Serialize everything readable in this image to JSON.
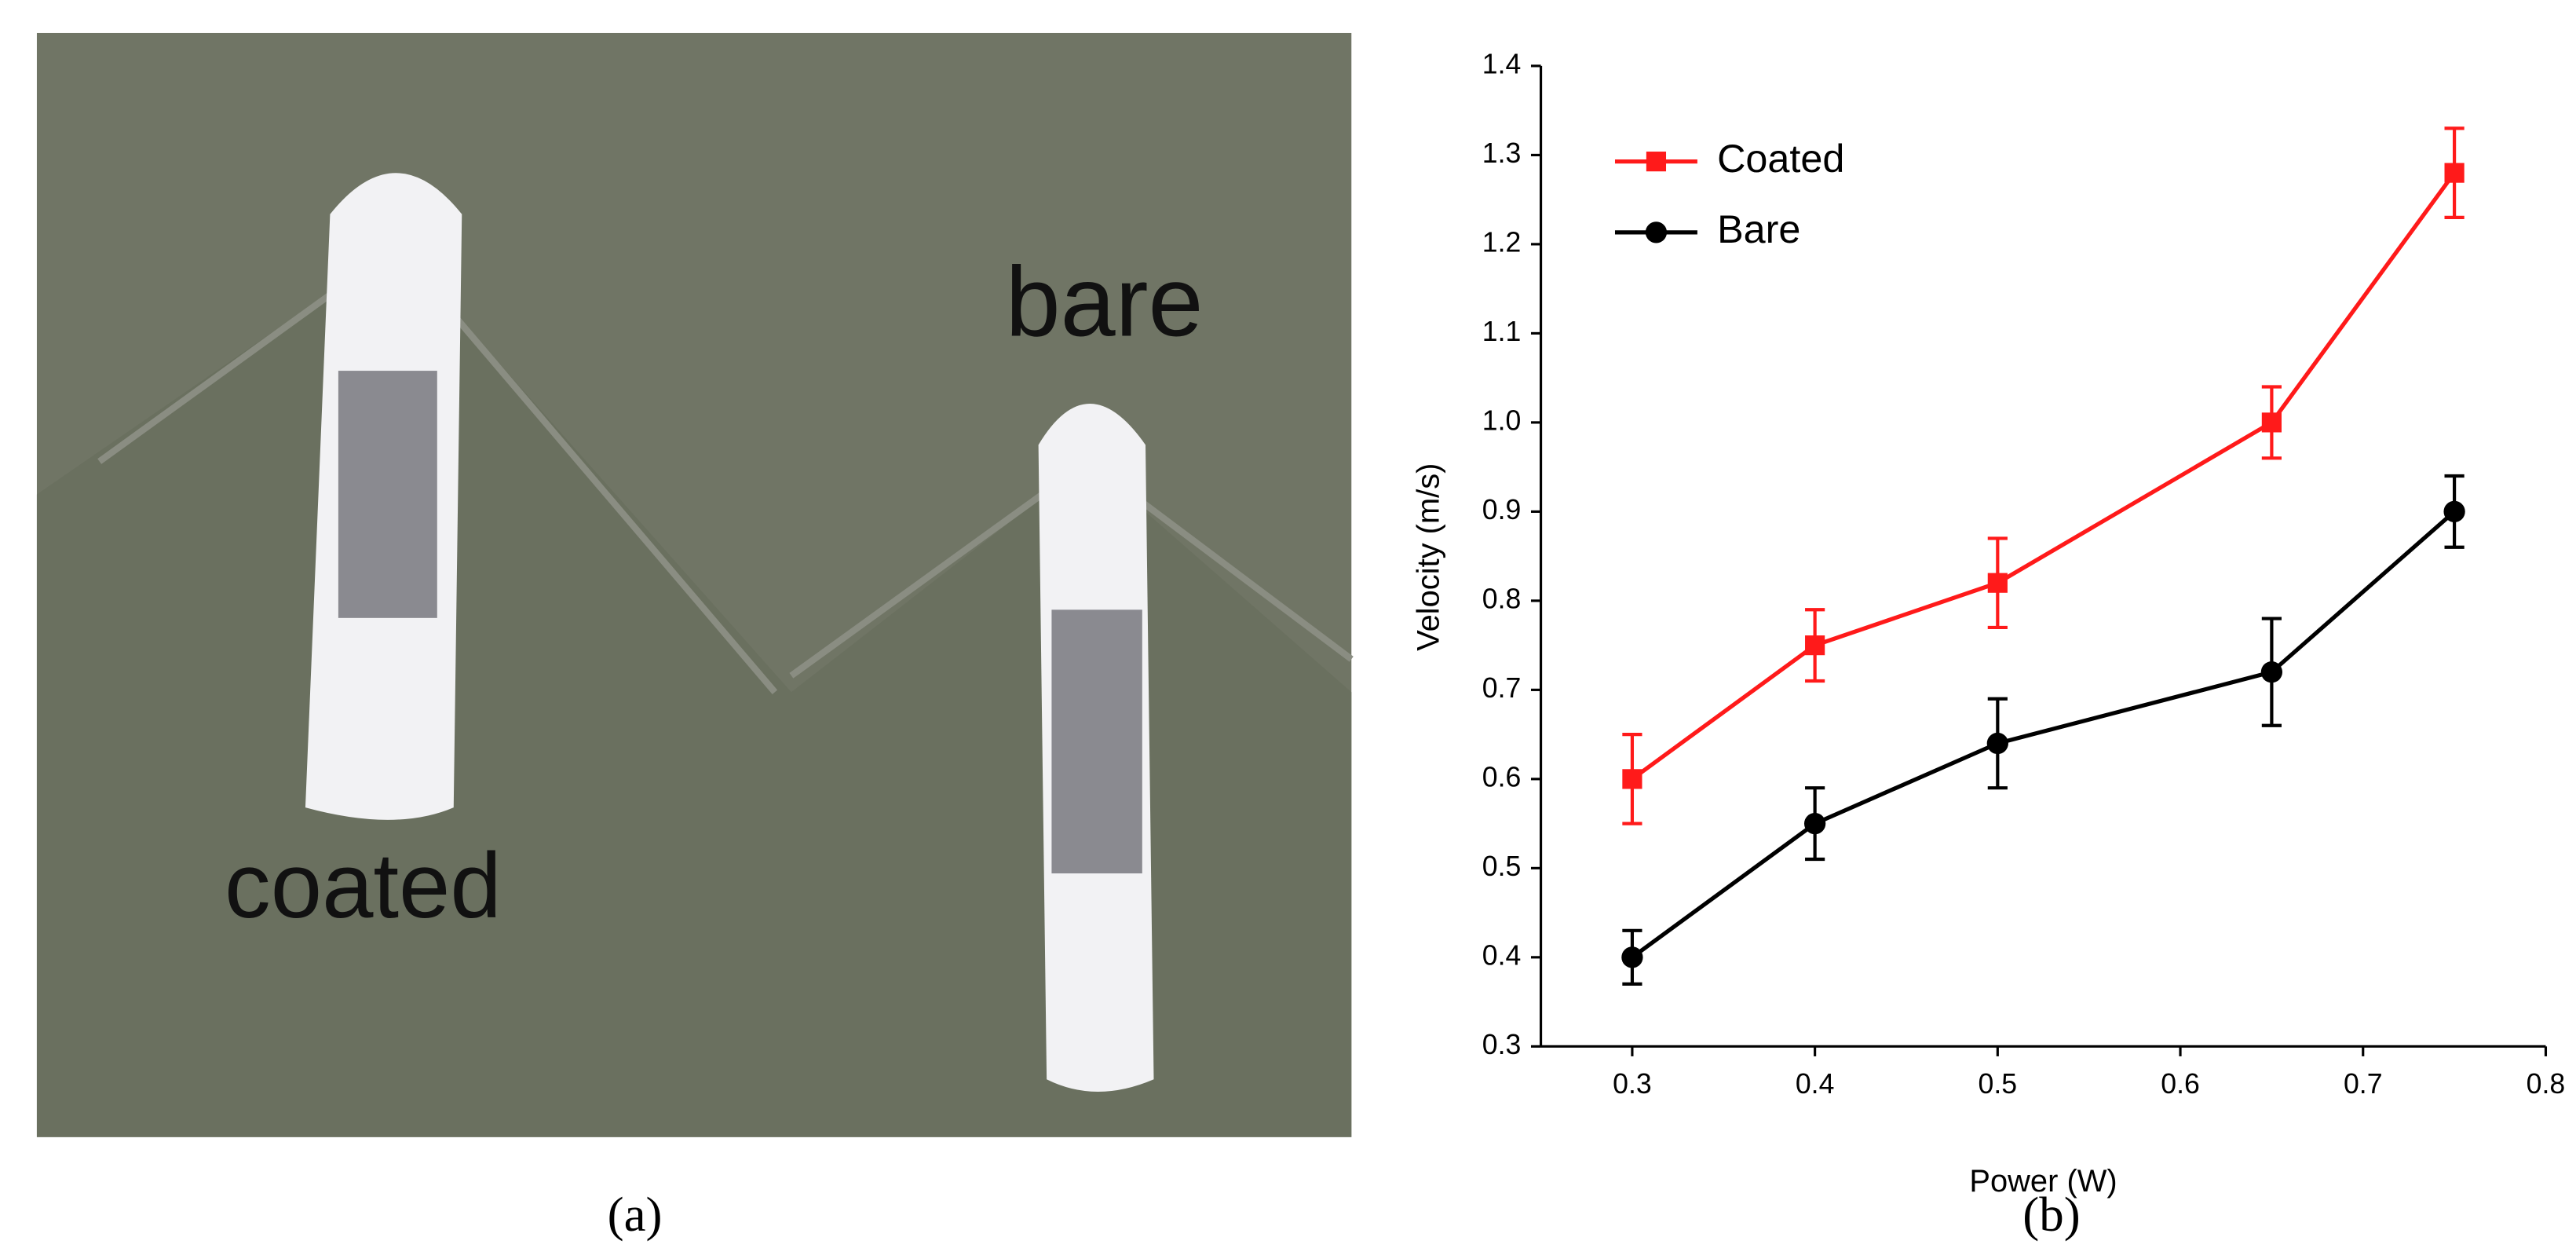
{
  "panels": [
    {
      "caption": "(a)",
      "annotations": [
        "coated",
        "bare"
      ]
    },
    {
      "caption": "(b)"
    }
  ],
  "chart_data": {
    "type": "line",
    "xlabel": "Power (W)",
    "ylabel": "Velocity (m/s)",
    "x": [
      0.3,
      0.4,
      0.5,
      0.65,
      0.75
    ],
    "series": [
      {
        "name": "Coated",
        "color": "#ff1a1a",
        "marker": "square",
        "values": [
          0.6,
          0.75,
          0.82,
          1.0,
          1.28
        ],
        "errors": [
          0.05,
          0.04,
          0.05,
          0.04,
          0.05
        ]
      },
      {
        "name": "Bare",
        "color": "#000000",
        "marker": "circle",
        "values": [
          0.4,
          0.55,
          0.64,
          0.72,
          0.9
        ],
        "errors": [
          0.03,
          0.04,
          0.05,
          0.06,
          0.04
        ]
      }
    ],
    "xlim": [
      0.25,
      0.8
    ],
    "xticks": [
      0.3,
      0.4,
      0.5,
      0.6,
      0.7,
      0.8
    ],
    "ylim": [
      0.3,
      1.4
    ],
    "yticks": [
      0.3,
      0.4,
      0.5,
      0.6,
      0.7,
      0.8,
      0.9,
      {
        "value": 1,
        "label": "1.0"
      },
      1.1,
      1.2,
      1.3,
      1.4
    ],
    "legend": "upper left"
  }
}
